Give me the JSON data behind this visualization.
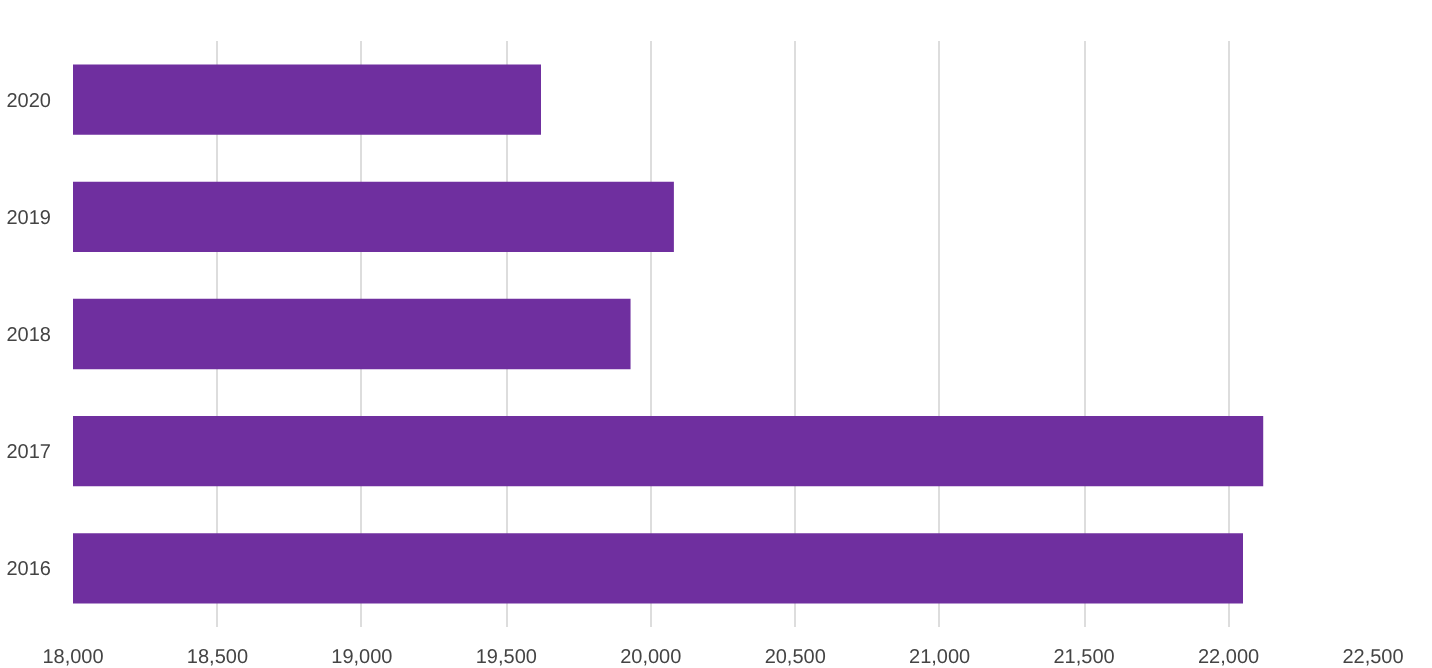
{
  "chart_data": {
    "type": "bar",
    "orientation": "horizontal",
    "categories": [
      "2020",
      "2019",
      "2018",
      "2017",
      "2016"
    ],
    "values": [
      19620,
      20080,
      19930,
      22120,
      22050
    ],
    "color": "#6f2f9f",
    "xlim": [
      18000,
      22500
    ],
    "xticks": [
      {
        "value": 18000,
        "label": "18,000"
      },
      {
        "value": 18500,
        "label": "18,500"
      },
      {
        "value": 19000,
        "label": "19,000"
      },
      {
        "value": 19500,
        "label": "19,500"
      },
      {
        "value": 20000,
        "label": "20,000"
      },
      {
        "value": 20500,
        "label": "20,500"
      },
      {
        "value": 21000,
        "label": "21,000"
      },
      {
        "value": 21500,
        "label": "21,500"
      },
      {
        "value": 22000,
        "label": "22,000"
      },
      {
        "value": 22500,
        "label": "22,500"
      }
    ],
    "grid": "x"
  }
}
